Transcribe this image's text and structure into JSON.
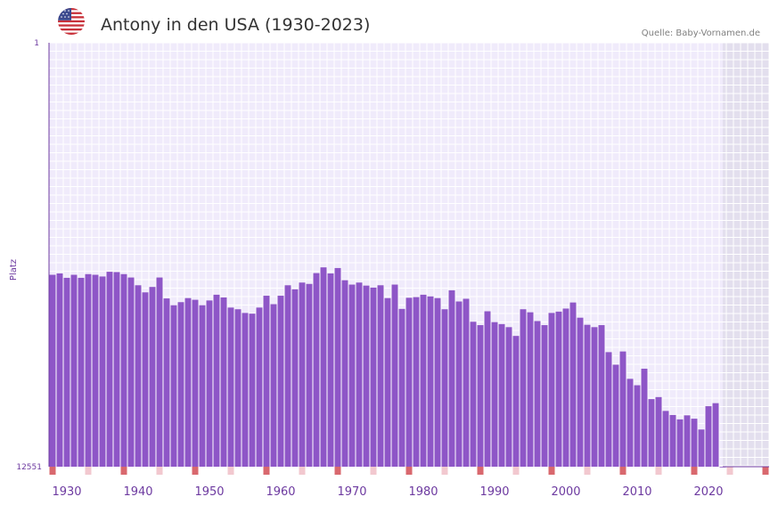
{
  "header": {
    "flag_icon": "us-flag-icon",
    "title": "Antony in den USA (1930-2023)",
    "source": "Quelle: Baby-Vornamen.de"
  },
  "colors": {
    "bar": "#8e56c7",
    "plot_bg": "#f0ebfb",
    "future_bg": "#e3dfee",
    "axis": "#6d3aa0",
    "marker_strong": "#d9686e",
    "marker_light": "#f2c8cf"
  },
  "chart_data": {
    "type": "bar",
    "title": "Antony in den USA (1930-2023)",
    "xlabel": "",
    "ylabel": "Platz",
    "y_inverted": true,
    "ylim": [
      1,
      12551
    ],
    "ytick_labels": [
      "1",
      "12551"
    ],
    "xlim": [
      1928,
      2029
    ],
    "xtick_labels": [
      "1930",
      "1940",
      "1950",
      "1960",
      "1970",
      "1980",
      "1990",
      "2000",
      "2010",
      "2020"
    ],
    "xtick_values": [
      1930,
      1940,
      1950,
      1960,
      1970,
      1980,
      1990,
      2000,
      2010,
      2020
    ],
    "no_data_from": 2022.5,
    "years": [
      1928,
      1929,
      1930,
      1931,
      1932,
      1933,
      1934,
      1935,
      1936,
      1937,
      1938,
      1939,
      1940,
      1941,
      1942,
      1943,
      1944,
      1945,
      1946,
      1947,
      1948,
      1949,
      1950,
      1951,
      1952,
      1953,
      1954,
      1955,
      1956,
      1957,
      1958,
      1959,
      1960,
      1961,
      1962,
      1963,
      1964,
      1965,
      1966,
      1967,
      1968,
      1969,
      1970,
      1971,
      1972,
      1973,
      1974,
      1975,
      1976,
      1977,
      1978,
      1979,
      1980,
      1981,
      1982,
      1983,
      1984,
      1985,
      1986,
      1987,
      1988,
      1989,
      1990,
      1991,
      1992,
      1993,
      1994,
      1995,
      1996,
      1997,
      1998,
      1999,
      2000,
      2001,
      2002,
      2003,
      2004,
      2005,
      2006,
      2007,
      2008,
      2009,
      2010,
      2011,
      2012,
      2013,
      2014,
      2015,
      2016,
      2017,
      2018,
      2019,
      2020,
      2021,
      2022
    ],
    "values": [
      6870,
      6830,
      6960,
      6870,
      6960,
      6850,
      6870,
      6920,
      6780,
      6790,
      6850,
      6950,
      7180,
      7390,
      7230,
      6950,
      7570,
      7770,
      7680,
      7560,
      7610,
      7770,
      7630,
      7460,
      7540,
      7840,
      7890,
      8000,
      8020,
      7840,
      7490,
      7740,
      7490,
      7180,
      7300,
      7100,
      7140,
      6820,
      6650,
      6830,
      6670,
      7030,
      7160,
      7100,
      7190,
      7250,
      7180,
      7560,
      7160,
      7880,
      7550,
      7530,
      7460,
      7510,
      7560,
      7890,
      7330,
      7660,
      7580,
      8260,
      8360,
      7950,
      8270,
      8330,
      8420,
      8680,
      7890,
      7980,
      8240,
      8360,
      8000,
      7960,
      7870,
      7690,
      8140,
      8350,
      8420,
      8360,
      9160,
      9530,
      9140,
      9950,
      10140,
      9650,
      10550,
      10490,
      10900,
      11020,
      11150,
      11030,
      11130,
      11450,
      10760,
      10670,
      12551
    ],
    "year_markers_strong": [
      1928,
      1938,
      1948,
      1958,
      1968,
      1978,
      1988,
      1998,
      2008,
      2018,
      2028
    ],
    "year_markers_light": [
      1933,
      1943,
      1953,
      1963,
      1973,
      1983,
      1993,
      2003,
      2013,
      2023
    ]
  }
}
